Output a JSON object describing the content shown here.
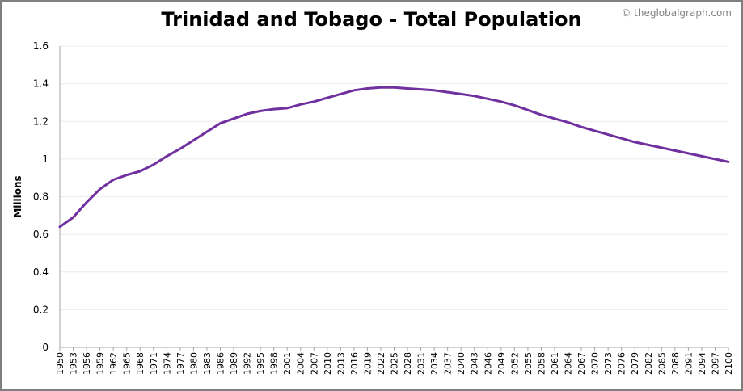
{
  "chart_data": {
    "type": "line",
    "title": "Trinidad and Tobago - Total Population",
    "credit": "© theglobalgraph.com",
    "xlabel": "",
    "ylabel": "Millions",
    "ylim": [
      0,
      1.6
    ],
    "xlim": [
      1950,
      2100
    ],
    "grid": true,
    "legend": "none",
    "color": "#7030a0",
    "y_ticks": [
      "0",
      "0.2",
      "0.4",
      "0.6",
      "0.8",
      "1",
      "1.2",
      "1.4",
      "1.6"
    ],
    "x_ticks": [
      "1950",
      "1953",
      "1956",
      "1959",
      "1962",
      "1965",
      "1968",
      "1971",
      "1974",
      "1977",
      "1980",
      "1983",
      "1986",
      "1989",
      "1992",
      "1995",
      "1998",
      "2001",
      "2004",
      "2007",
      "2010",
      "2013",
      "2016",
      "2019",
      "2022",
      "2025",
      "2028",
      "2031",
      "2034",
      "2037",
      "2040",
      "2043",
      "2046",
      "2049",
      "2052",
      "2055",
      "2058",
      "2061",
      "2064",
      "2067",
      "2070",
      "2073",
      "2076",
      "2079",
      "2082",
      "2085",
      "2088",
      "2091",
      "2094",
      "2097",
      "2100"
    ],
    "series": [
      {
        "name": "Total Population",
        "x": [
          1950,
          1953,
          1956,
          1959,
          1962,
          1965,
          1968,
          1971,
          1974,
          1977,
          1980,
          1983,
          1986,
          1989,
          1992,
          1995,
          1998,
          2001,
          2004,
          2007,
          2010,
          2013,
          2016,
          2019,
          2022,
          2025,
          2028,
          2031,
          2034,
          2037,
          2040,
          2043,
          2046,
          2049,
          2052,
          2055,
          2058,
          2061,
          2064,
          2067,
          2070,
          2073,
          2076,
          2079,
          2082,
          2085,
          2088,
          2091,
          2094,
          2097,
          2100
        ],
        "values": [
          0.64,
          0.69,
          0.77,
          0.84,
          0.89,
          0.915,
          0.935,
          0.97,
          1.015,
          1.055,
          1.1,
          1.145,
          1.19,
          1.215,
          1.24,
          1.255,
          1.265,
          1.27,
          1.29,
          1.305,
          1.325,
          1.345,
          1.365,
          1.375,
          1.38,
          1.38,
          1.375,
          1.37,
          1.365,
          1.355,
          1.345,
          1.335,
          1.32,
          1.305,
          1.285,
          1.26,
          1.235,
          1.215,
          1.195,
          1.17,
          1.15,
          1.13,
          1.11,
          1.09,
          1.075,
          1.06,
          1.045,
          1.03,
          1.015,
          1.0,
          0.985
        ]
      }
    ]
  }
}
